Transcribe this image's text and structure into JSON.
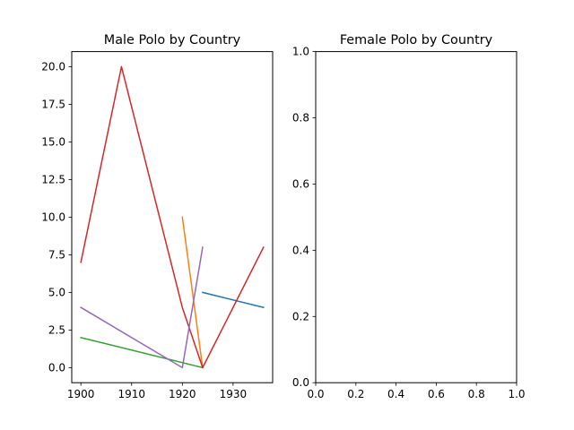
{
  "figure": {
    "background": "#ffffff"
  },
  "chart_data": [
    {
      "type": "line",
      "title": "Male Polo by Country",
      "xlabel": "",
      "ylabel": "",
      "xlim": [
        1898.2,
        1937.8
      ],
      "ylim": [
        -1.0,
        21.0
      ],
      "xticks": [
        1900,
        1910,
        1920,
        1930
      ],
      "xtick_labels": [
        "1900",
        "1910",
        "1920",
        "1930"
      ],
      "yticks": [
        0,
        2.5,
        5,
        7.5,
        10,
        12.5,
        15,
        17.5,
        20
      ],
      "ytick_labels": [
        "0.0",
        "2.5",
        "5.0",
        "7.5",
        "10.0",
        "12.5",
        "15.0",
        "17.5",
        "20.0"
      ],
      "grid": false,
      "legend": false,
      "series": [
        {
          "color": "#1f77b4",
          "x": [
            1924,
            1936
          ],
          "y": [
            5,
            4
          ]
        },
        {
          "color": "#ff7f0e",
          "x": [
            1920,
            1924
          ],
          "y": [
            10,
            0
          ]
        },
        {
          "color": "#2ca02c",
          "x": [
            1900,
            1924
          ],
          "y": [
            2,
            0
          ]
        },
        {
          "color": "#d62728",
          "x": [
            1900,
            1908,
            1920,
            1924,
            1936
          ],
          "y": [
            7,
            20,
            4,
            0,
            8
          ]
        },
        {
          "color": "#9467bd",
          "x": [
            1900,
            1920,
            1924
          ],
          "y": [
            4,
            0,
            8
          ]
        }
      ]
    },
    {
      "type": "line",
      "title": "Female Polo by Country",
      "xlabel": "",
      "ylabel": "",
      "xlim": [
        0,
        1
      ],
      "ylim": [
        0,
        1
      ],
      "xticks": [
        0,
        0.2,
        0.4,
        0.6,
        0.8,
        1.0
      ],
      "xtick_labels": [
        "0.0",
        "0.2",
        "0.4",
        "0.6",
        "0.8",
        "1.0"
      ],
      "yticks": [
        0,
        0.2,
        0.4,
        0.6,
        0.8,
        1.0
      ],
      "ytick_labels": [
        "0.0",
        "0.2",
        "0.4",
        "0.6",
        "0.8",
        "1.0"
      ],
      "grid": false,
      "legend": false,
      "series": []
    }
  ]
}
